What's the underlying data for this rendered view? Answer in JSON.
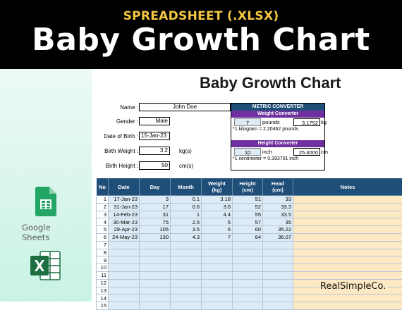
{
  "banner": {
    "subtitle": "SPREADSHEET (.XLSX)",
    "title": "Baby Growth Chart"
  },
  "sheet": {
    "title": "Baby Growth Chart"
  },
  "profile": {
    "name_label": "Name :",
    "name": "John Doe",
    "gender_label": "Gender :",
    "gender": "Male",
    "dob_label": "Date of Birth :",
    "dob": "15-Jan-23",
    "weight_label": "Birth Weight :",
    "weight": "3.2",
    "weight_unit": "kg(s)",
    "height_label": "Birth Height :",
    "height": "50",
    "height_unit": "cm(s)"
  },
  "converter": {
    "title": "METRIC CONVERTER",
    "weight_title": "Weight Converter",
    "weight_input": "7",
    "weight_input_unit": "pounds",
    "weight_output": "3.1752",
    "weight_output_unit": "kg",
    "weight_note": "*1 kilogram = 2.20462 pounds",
    "height_title": "Height Converter",
    "height_input": "10",
    "height_input_unit": "inch",
    "height_output": "25.4000",
    "height_output_unit": "cm",
    "height_note": "*1 centimeter = 0.393701 inch"
  },
  "table": {
    "headers": [
      "No",
      "Date",
      "Day",
      "Month",
      "Weight\n(kg)",
      "Height\n(cm)",
      "Head\n(cm)",
      "Notes"
    ],
    "rows": [
      [
        "1",
        "17-Jan-23",
        "3",
        "0.1",
        "3.18",
        "51",
        "33",
        ""
      ],
      [
        "2",
        "31-Jan-23",
        "17",
        "0.6",
        "3.6",
        "52",
        "33.3",
        ""
      ],
      [
        "3",
        "14-Feb-23",
        "31",
        "1",
        "4.4",
        "55",
        "33.5",
        ""
      ],
      [
        "4",
        "30-Mar-23",
        "75",
        "2.5",
        "5",
        "57",
        "35",
        ""
      ],
      [
        "5",
        "29-Apr-23",
        "105",
        "3.5",
        "6",
        "60",
        "35.22",
        ""
      ],
      [
        "6",
        "24-May-23",
        "130",
        "4.3",
        "7",
        "64",
        "36.07",
        ""
      ],
      [
        "7",
        "",
        "",
        "",
        "",
        "",
        "",
        ""
      ],
      [
        "8",
        "",
        "",
        "",
        "",
        "",
        "",
        ""
      ],
      [
        "9",
        "",
        "",
        "",
        "",
        "",
        "",
        ""
      ],
      [
        "10",
        "",
        "",
        "",
        "",
        "",
        "",
        ""
      ],
      [
        "11",
        "",
        "",
        "",
        "",
        "",
        "",
        ""
      ],
      [
        "12",
        "",
        "",
        "",
        "",
        "",
        "",
        ""
      ],
      [
        "13",
        "",
        "",
        "",
        "",
        "",
        "",
        ""
      ],
      [
        "14",
        "",
        "",
        "",
        "",
        "",
        "",
        ""
      ],
      [
        "15",
        "",
        "",
        "",
        "",
        "",
        "",
        ""
      ]
    ]
  },
  "apps": {
    "google_sheets_label": "Google Sheets"
  },
  "brand": "RealSimpleCo.",
  "colors": {
    "header_blue": "#1f4e79",
    "purple": "#7030a0",
    "cell_blue": "#ddebf7",
    "notes_orange": "#fde9c4",
    "banner_yellow": "#f5c842"
  },
  "icons": {
    "google_sheets": "google-sheets-icon",
    "excel": "excel-icon"
  }
}
